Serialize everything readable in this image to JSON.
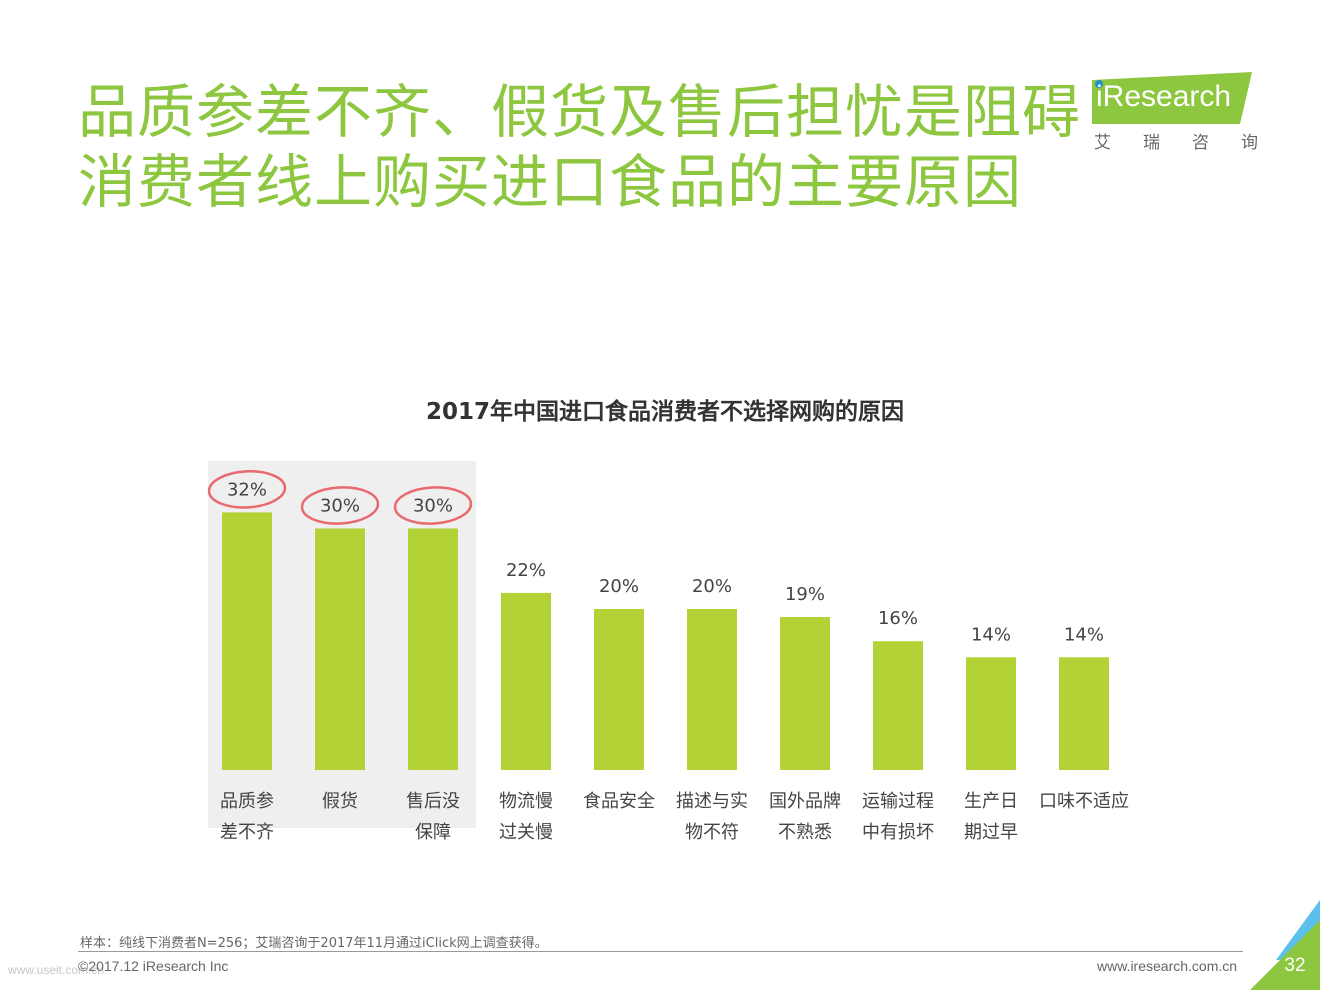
{
  "header": {
    "title_line1": "品质参差不齐、假货及售后担忧是阻碍",
    "title_line2": "消费者线上购买进口食品的主要原因"
  },
  "logo": {
    "brand": "iResearch",
    "cn_chars": [
      "艾",
      "瑞",
      "咨",
      "询"
    ],
    "color": "#8dc63f"
  },
  "chart_data": {
    "type": "bar",
    "title": "2017年中国进口食品消费者不选择网购的原因",
    "categories": [
      [
        "品质参",
        "差不齐"
      ],
      [
        "假货"
      ],
      [
        "售后没",
        "保障"
      ],
      [
        "物流慢",
        "过关慢"
      ],
      [
        "食品安全"
      ],
      [
        "描述与实",
        "物不符"
      ],
      [
        "国外品牌",
        "不熟悉"
      ],
      [
        "运输过程",
        "中有损坏"
      ],
      [
        "生产日",
        "期过早"
      ],
      [
        "口味不适应"
      ]
    ],
    "values": [
      32,
      30,
      30,
      22,
      20,
      20,
      19,
      16,
      14,
      14
    ],
    "value_labels": [
      "32%",
      "30%",
      "30%",
      "22%",
      "20%",
      "20%",
      "19%",
      "16%",
      "14%",
      "14%"
    ],
    "highlighted": [
      0,
      1,
      2
    ],
    "unit": "%",
    "bar_color": "#b2d235",
    "highlight_bg": "#efefef",
    "circle_color": "#e8696e",
    "grid": false,
    "legend": "none"
  },
  "footer": {
    "footnote": "样本：纯线下消费者N=256；艾瑞咨询于2017年11月通过iClick网上调查获得。",
    "copyright": "©2017.12 iResearch Inc",
    "website": "www.iresearch.com.cn",
    "page_number": "32",
    "watermark": "www.useit.com.cn"
  }
}
